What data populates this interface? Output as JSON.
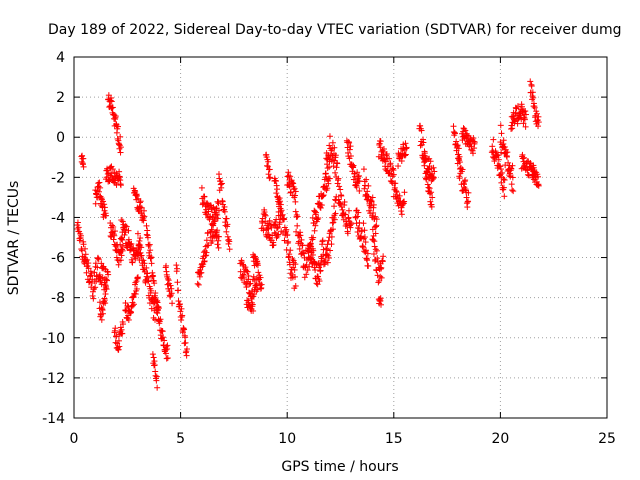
{
  "chart_data": {
    "type": "scatter",
    "title": "Day 189 of 2022, Sidereal Day-to-day VTEC variation (SDTVAR) for receiver dumg",
    "xlabel": "GPS time / hours",
    "ylabel": "SDTVAR / TECUs",
    "xlim": [
      0,
      25
    ],
    "ylim": [
      -14,
      4
    ],
    "x_ticks": [
      0,
      5,
      10,
      15,
      20,
      25
    ],
    "y_ticks": [
      -14,
      -12,
      -10,
      -8,
      -6,
      -4,
      -2,
      0,
      2,
      4
    ],
    "grid": true,
    "marker": "+",
    "series_color": "#ff0000",
    "series": [
      {
        "name": "SDTVAR",
        "segments": [
          {
            "t0": 0.15,
            "t1": 0.5,
            "y": [
              -4.0,
              -4.6,
              -5.2,
              -5.6,
              -6.0
            ],
            "spread": 0.5
          },
          {
            "t0": 0.35,
            "t1": 0.45,
            "y": [
              -1.0,
              -1.3
            ],
            "spread": 0.3
          },
          {
            "t0": 0.5,
            "t1": 1.5,
            "y": [
              -6.0,
              -6.8,
              -7.5,
              -6.5,
              -6.8,
              -7.2
            ],
            "spread": 0.6
          },
          {
            "t0": 1.0,
            "t1": 1.5,
            "y": [
              -3.0,
              -2.5,
              -3.5,
              -4.0
            ],
            "spread": 0.4
          },
          {
            "t0": 1.2,
            "t1": 1.6,
            "y": [
              -8.5,
              -9.0,
              -8.0,
              -6.5
            ],
            "spread": 0.4
          },
          {
            "t0": 1.5,
            "t1": 2.2,
            "y": [
              -2.0,
              -1.8,
              -2.2,
              -2.0
            ],
            "spread": 0.4
          },
          {
            "t0": 1.6,
            "t1": 2.2,
            "y": [
              2.0,
              1.6,
              1.0,
              0.2,
              -0.5
            ],
            "spread": 0.4
          },
          {
            "t0": 1.7,
            "t1": 2.3,
            "y": [
              -4.5,
              -5.0,
              -6.0,
              -5.5
            ],
            "spread": 0.5
          },
          {
            "t0": 1.9,
            "t1": 2.3,
            "y": [
              -9.5,
              -10.5,
              -10.0,
              -9.2
            ],
            "spread": 0.4
          },
          {
            "t0": 2.2,
            "t1": 3.1,
            "y": [
              -4.5,
              -5.0,
              -6.0,
              -5.6
            ],
            "spread": 0.6
          },
          {
            "t0": 2.4,
            "t1": 3.0,
            "y": [
              -8.5,
              -8.8,
              -8.0,
              -7.0
            ],
            "spread": 0.4
          },
          {
            "t0": 2.8,
            "t1": 3.3,
            "y": [
              -2.8,
              -3.2,
              -3.6,
              -4.0
            ],
            "spread": 0.4
          },
          {
            "t0": 3.0,
            "t1": 3.8,
            "y": [
              -5.0,
              -6.0,
              -7.0,
              -8.0,
              -8.8
            ],
            "spread": 0.5
          },
          {
            "t0": 3.4,
            "t1": 4.0,
            "y": [
              -4.6,
              -6.0,
              -8.0,
              -9.0
            ],
            "spread": 0.4
          },
          {
            "t0": 3.7,
            "t1": 3.9,
            "y": [
              -11.0,
              -11.6,
              -12.2
            ],
            "spread": 0.3
          },
          {
            "t0": 3.9,
            "t1": 4.4,
            "y": [
              -8.5,
              -9.5,
              -10.5,
              -10.8
            ],
            "spread": 0.4
          },
          {
            "t0": 4.3,
            "t1": 4.6,
            "y": [
              -6.5,
              -7.5,
              -8.0
            ],
            "spread": 0.4
          },
          {
            "t0": 4.8,
            "t1": 5.3,
            "y": [
              -6.2,
              -8.2,
              -9.0,
              -10.0,
              -10.8
            ],
            "spread": 0.4
          },
          {
            "t0": 5.8,
            "t1": 6.3,
            "y": [
              -7.2,
              -6.5,
              -5.8,
              -5.0
            ],
            "spread": 0.4
          },
          {
            "t0": 6.0,
            "t1": 6.8,
            "y": [
              -3.0,
              -3.5,
              -4.0,
              -3.6
            ],
            "spread": 0.5
          },
          {
            "t0": 6.4,
            "t1": 6.8,
            "y": [
              -5.0,
              -4.5,
              -5.2
            ],
            "spread": 0.4
          },
          {
            "t0": 6.8,
            "t1": 7.3,
            "y": [
              -2.0,
              -2.6,
              -3.5,
              -4.5,
              -5.3
            ],
            "spread": 0.5
          },
          {
            "t0": 7.8,
            "t1": 8.6,
            "y": [
              -6.5,
              -7.0,
              -7.6,
              -7.2
            ],
            "spread": 0.5
          },
          {
            "t0": 8.1,
            "t1": 8.4,
            "y": [
              -8.2,
              -8.6
            ],
            "spread": 0.3
          },
          {
            "t0": 8.4,
            "t1": 8.8,
            "y": [
              -6.0,
              -6.5,
              -7.5
            ],
            "spread": 0.4
          },
          {
            "t0": 8.8,
            "t1": 9.6,
            "y": [
              -4.0,
              -4.5,
              -5.0,
              -4.2
            ],
            "spread": 0.6
          },
          {
            "t0": 9.0,
            "t1": 9.2,
            "y": [
              -1.0,
              -1.4,
              -2.0
            ],
            "spread": 0.3
          },
          {
            "t0": 9.4,
            "t1": 9.7,
            "y": [
              -2.2,
              -2.8,
              -3.5
            ],
            "spread": 0.3
          },
          {
            "t0": 9.6,
            "t1": 10.4,
            "y": [
              -3.5,
              -4.5,
              -5.5,
              -6.5,
              -7.0
            ],
            "spread": 0.7
          },
          {
            "t0": 10.0,
            "t1": 10.4,
            "y": [
              -2.0,
              -2.5,
              -3.0
            ],
            "spread": 0.4
          },
          {
            "t0": 10.4,
            "t1": 11.2,
            "y": [
              -4.0,
              -5.0,
              -6.5,
              -6.0,
              -5.5
            ],
            "spread": 0.7
          },
          {
            "t0": 11.0,
            "t1": 11.6,
            "y": [
              -5.5,
              -6.0,
              -7.0,
              -6.5
            ],
            "spread": 0.6
          },
          {
            "t0": 11.2,
            "t1": 12.0,
            "y": [
              -4.5,
              -3.5,
              -2.5,
              -1.5
            ],
            "spread": 0.6
          },
          {
            "t0": 11.6,
            "t1": 12.3,
            "y": [
              -5.5,
              -6.0,
              -5.0,
              -3.0
            ],
            "spread": 0.6
          },
          {
            "t0": 11.8,
            "t1": 12.4,
            "y": [
              -1.5,
              -0.5,
              -1.0,
              -2.0
            ],
            "spread": 0.6
          },
          {
            "t0": 12.4,
            "t1": 13.0,
            "y": [
              -3.0,
              -3.5,
              -4.0,
              -4.5
            ],
            "spread": 0.7
          },
          {
            "t0": 12.8,
            "t1": 13.4,
            "y": [
              -0.5,
              -1.0,
              -2.0,
              -2.5
            ],
            "spread": 0.5
          },
          {
            "t0": 13.2,
            "t1": 13.8,
            "y": [
              -4.0,
              -4.5,
              -5.0,
              -6.0
            ],
            "spread": 0.7
          },
          {
            "t0": 13.6,
            "t1": 14.2,
            "y": [
              -2.0,
              -3.0,
              -3.5,
              -4.5
            ],
            "spread": 0.6
          },
          {
            "t0": 14.0,
            "t1": 14.5,
            "y": [
              -5.0,
              -6.0,
              -7.0,
              -6.5
            ],
            "spread": 0.6
          },
          {
            "t0": 14.3,
            "t1": 14.4,
            "y": [
              -8.2
            ],
            "spread": 0.2
          },
          {
            "t0": 14.3,
            "t1": 15.0,
            "y": [
              -0.5,
              -1.0,
              -1.5,
              -2.0
            ],
            "spread": 0.5
          },
          {
            "t0": 15.0,
            "t1": 15.5,
            "y": [
              -2.5,
              -3.0,
              -3.5,
              -3.0
            ],
            "spread": 0.5
          },
          {
            "t0": 15.2,
            "t1": 15.6,
            "y": [
              -1.2,
              -0.8,
              -0.5
            ],
            "spread": 0.4
          },
          {
            "t0": 16.2,
            "t1": 16.8,
            "y": [
              0.4,
              -0.5,
              -1.5,
              -2.5,
              -3.5
            ],
            "spread": 0.6
          },
          {
            "t0": 16.4,
            "t1": 16.9,
            "y": [
              -1.0,
              -1.5,
              -2.0
            ],
            "spread": 0.5
          },
          {
            "t0": 17.8,
            "t1": 18.1,
            "y": [
              0.5,
              -0.5,
              -1.0
            ],
            "spread": 0.4
          },
          {
            "t0": 18.0,
            "t1": 18.5,
            "y": [
              -1.0,
              -2.0,
              -2.5,
              -3.2
            ],
            "spread": 0.6
          },
          {
            "t0": 18.2,
            "t1": 18.8,
            "y": [
              0.2,
              -0.2,
              -0.5
            ],
            "spread": 0.4
          },
          {
            "t0": 19.6,
            "t1": 20.2,
            "y": [
              -0.5,
              -1.0,
              -1.5,
              -2.5
            ],
            "spread": 0.6
          },
          {
            "t0": 20.0,
            "t1": 20.6,
            "y": [
              0.0,
              -0.5,
              -1.0,
              -1.5,
              -2.2
            ],
            "spread": 0.7
          },
          {
            "t0": 20.5,
            "t1": 21.2,
            "y": [
              0.5,
              1.0,
              1.4,
              0.8
            ],
            "spread": 0.5
          },
          {
            "t0": 21.0,
            "t1": 21.6,
            "y": [
              -1.2,
              -1.5,
              -1.8
            ],
            "spread": 0.4
          },
          {
            "t0": 21.4,
            "t1": 21.8,
            "y": [
              2.6,
              1.8,
              1.0,
              0.6
            ],
            "spread": 0.4
          },
          {
            "t0": 21.5,
            "t1": 21.8,
            "y": [
              -1.8,
              -2.0,
              -2.2
            ],
            "spread": 0.3
          }
        ]
      }
    ]
  }
}
